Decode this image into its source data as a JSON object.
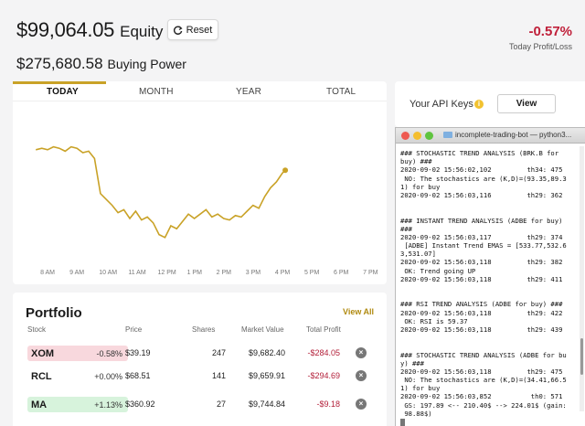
{
  "header": {
    "equity_value": "$99,064.05",
    "equity_label": "Equity",
    "reset_label": "Reset",
    "buying_power_value": "$275,680.58",
    "buying_power_label": "Buying Power",
    "profit_pct": "-0.57%",
    "profit_label": "Today Profit/Loss"
  },
  "chart": {
    "tabs": [
      {
        "label": "TODAY",
        "active": true
      },
      {
        "label": "MONTH",
        "active": false
      },
      {
        "label": "YEAR",
        "active": false
      },
      {
        "label": "TOTAL",
        "active": false
      }
    ],
    "line_color": "#c9a227"
  },
  "chart_data": {
    "type": "line",
    "x_ticks": [
      "8 AM",
      "9 AM",
      "10 AM",
      "11 AM",
      "12 PM",
      "1 PM",
      "2 PM",
      "3 PM",
      "4 PM",
      "5 PM",
      "6 PM",
      "7 PM"
    ],
    "series": [
      {
        "x": [
          7.6,
          7.8,
          8.0,
          8.2,
          8.4,
          8.6,
          8.8,
          9.0,
          9.2,
          9.4,
          9.6,
          9.8,
          10.0,
          10.2,
          10.4,
          10.6,
          10.8,
          11.0,
          11.2,
          11.4,
          11.6,
          11.8,
          12.0,
          12.2,
          12.4,
          12.6,
          12.8,
          13.0,
          13.2,
          13.4,
          13.6,
          13.8,
          14.0,
          14.2,
          14.4,
          14.6,
          14.8,
          15.0,
          15.2,
          15.4,
          15.6,
          15.8,
          16.0,
          16.1
        ],
        "y": [
          82,
          83,
          82,
          84,
          83,
          81,
          84,
          83,
          80,
          81,
          76,
          52,
          48,
          44,
          39,
          41,
          35,
          40,
          34,
          36,
          32,
          24,
          22,
          30,
          28,
          33,
          38,
          35,
          38,
          41,
          36,
          38,
          35,
          34,
          37,
          36,
          40,
          44,
          42,
          50,
          56,
          60,
          66,
          68
        ]
      }
    ]
  },
  "portfolio": {
    "title": "Portfolio",
    "view_all": "View All",
    "columns": [
      "Stock",
      "Price",
      "Shares",
      "Market Value",
      "Total Profit"
    ],
    "rows": [
      {
        "symbol": "XOM",
        "change": "-0.58%",
        "trend": "neg",
        "price": "$39.19",
        "shares": "247",
        "market_value": "$9,682.40",
        "total_profit": "-$284.05"
      },
      {
        "symbol": "RCL",
        "change": "+0.00%",
        "trend": "neu",
        "price": "$68.51",
        "shares": "141",
        "market_value": "$9,659.91",
        "total_profit": "-$294.69"
      },
      {
        "symbol": "MA",
        "change": "+1.13%",
        "trend": "pos",
        "price": "$360.92",
        "shares": "27",
        "market_value": "$9,744.84",
        "total_profit": "-$9.18"
      }
    ]
  },
  "api": {
    "label": "Your API Keys",
    "view_label": "View"
  },
  "terminal": {
    "title": "incomplete-trading-bot — python3...",
    "lines": [
      "### STOCHASTIC TREND ANALYSIS (BRK.B for",
      "buy) ###",
      "2020-09-02 15:56:02,102         th34: 475",
      " NO: The stochastics are (K,D)=(93.35,89.3",
      "1) for buy",
      "2020-09-02 15:56:03,116         th29: 362",
      "",
      "",
      "### INSTANT TREND ANALYSIS (ADBE for buy)",
      "###",
      "2020-09-02 15:56:03,117         th29: 374",
      " [ADBE] Instant Trend EMAS = [533.77,532.6",
      "3,531.07]",
      "2020-09-02 15:56:03,118         th29: 382",
      " OK: Trend going UP",
      "2020-09-02 15:56:03,118         th29: 411",
      "",
      "",
      "### RSI TREND ANALYSIS (ADBE for buy) ###",
      "2020-09-02 15:56:03,118         th29: 422",
      " OK: RSI is 59.37",
      "2020-09-02 15:56:03,118         th29: 439",
      "",
      "",
      "### STOCHASTIC TREND ANALYSIS (ADBE for bu",
      "y) ###",
      "2020-09-02 15:56:03,118         th29: 475",
      " NO: The stochastics are (K,D)=(34.41,66.5",
      "1) for buy",
      "2020-09-02 15:56:03,852          th0: 571",
      " GS: 197.89 <-- 210.40$ --> 224.01$ (gain:",
      " 98.88$)"
    ]
  }
}
